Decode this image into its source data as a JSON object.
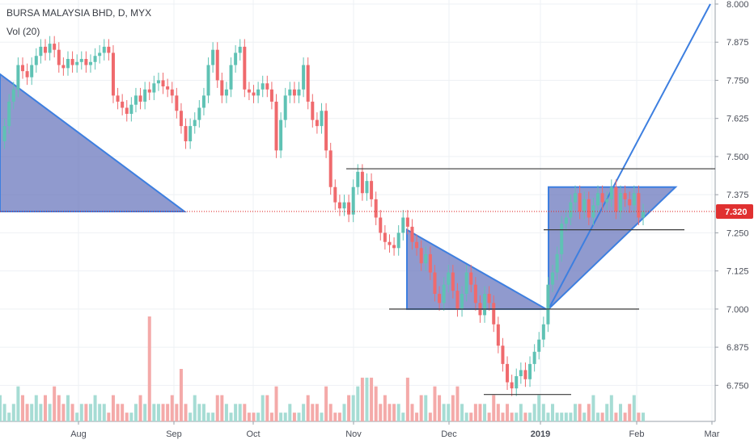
{
  "header": {
    "symbol_line": "BURSA MALAYSIA BHD, D, MYX",
    "volume_label": "Vol (20)"
  },
  "colors": {
    "up": "#5fc2b4",
    "down": "#ef6a6d",
    "vol_up": "#a6dcd4",
    "vol_down": "#f4aaa9",
    "pattern_fill": "#6b78be",
    "pattern_line": "#3d7fe0",
    "level_line": "#3a3a3a",
    "price_line": "#e03030",
    "grid": "#eef1f4"
  },
  "chart_data": {
    "type": "candlestick",
    "ylim": [
      6.69,
      8.0
    ],
    "y_ticks": [
      "8.000",
      "7.875",
      "7.750",
      "7.625",
      "7.500",
      "7.375",
      "7.250",
      "7.125",
      "7.000",
      "6.875",
      "6.750"
    ],
    "x_ticks": [
      "Aug",
      "Sep",
      "Oct",
      "Nov",
      "Dec",
      "2019",
      "Feb",
      "Mar"
    ],
    "last_price": "7.320",
    "price_series": [
      7.55,
      7.6,
      7.68,
      7.72,
      7.8,
      7.78,
      7.76,
      7.8,
      7.83,
      7.86,
      7.84,
      7.87,
      7.85,
      7.8,
      7.79,
      7.82,
      7.8,
      7.81,
      7.82,
      7.8,
      7.81,
      7.83,
      7.84,
      7.86,
      7.84,
      7.7,
      7.68,
      7.66,
      7.64,
      7.67,
      7.7,
      7.68,
      7.72,
      7.71,
      7.74,
      7.75,
      7.73,
      7.72,
      7.7,
      7.65,
      7.6,
      7.55,
      7.6,
      7.62,
      7.66,
      7.7,
      7.8,
      7.85,
      7.75,
      7.7,
      7.72,
      7.8,
      7.84,
      7.86,
      7.72,
      7.71,
      7.7,
      7.72,
      7.74,
      7.72,
      7.68,
      7.52,
      7.62,
      7.7,
      7.72,
      7.7,
      7.72,
      7.8,
      7.68,
      7.62,
      7.6,
      7.65,
      7.52,
      7.4,
      7.35,
      7.33,
      7.35,
      7.31,
      7.4,
      7.45,
      7.38,
      7.42,
      7.36,
      7.3,
      7.25,
      7.22,
      7.21,
      7.2,
      7.25,
      7.3,
      7.27,
      7.22,
      7.2,
      7.15,
      7.18,
      7.12,
      7.05,
      7.02,
      7.08,
      7.12,
      7.06,
      7.0,
      7.05,
      7.12,
      7.08,
      7.02,
      6.98,
      7.05,
      7.02,
      6.95,
      6.88,
      6.82,
      6.76,
      6.74,
      6.78,
      6.8,
      6.77,
      6.82,
      6.86,
      6.9,
      6.95,
      7.08,
      7.12,
      7.18,
      7.28,
      7.3,
      7.35,
      7.38,
      7.32,
      7.36,
      7.3,
      7.34,
      7.38,
      7.35,
      7.36,
      7.4,
      7.32,
      7.38,
      7.36,
      7.34,
      7.38,
      7.3,
      7.32
    ],
    "volume_series": [
      3,
      2,
      1,
      2,
      4,
      3,
      2,
      2,
      3,
      2,
      3,
      2,
      4,
      3,
      2,
      3,
      2,
      1,
      2,
      2,
      2,
      3,
      2,
      2,
      1,
      3,
      2,
      2,
      1,
      1,
      2,
      3,
      2,
      12,
      2,
      2,
      2,
      2,
      3,
      2,
      6,
      2,
      1,
      3,
      2,
      2,
      1,
      1,
      3,
      3,
      2,
      1,
      2,
      2,
      2,
      1,
      1,
      1,
      3,
      3,
      1,
      4,
      1,
      1,
      2,
      1,
      1,
      2,
      3,
      2,
      2,
      1,
      4,
      2,
      1,
      1,
      2,
      3,
      3,
      4,
      5,
      5,
      5,
      4,
      2,
      3,
      2,
      2,
      2,
      1,
      5,
      2,
      1,
      3,
      3,
      1,
      4,
      3,
      2,
      2,
      3,
      4,
      2,
      1,
      1,
      2,
      2,
      2,
      1,
      3,
      2,
      1,
      2,
      1,
      1,
      2,
      1,
      1,
      2,
      3,
      2,
      1,
      2,
      1,
      1,
      1,
      1,
      2,
      2,
      1,
      2,
      3,
      1,
      1,
      2,
      3,
      1,
      2,
      1,
      2,
      3,
      1,
      1
    ]
  }
}
